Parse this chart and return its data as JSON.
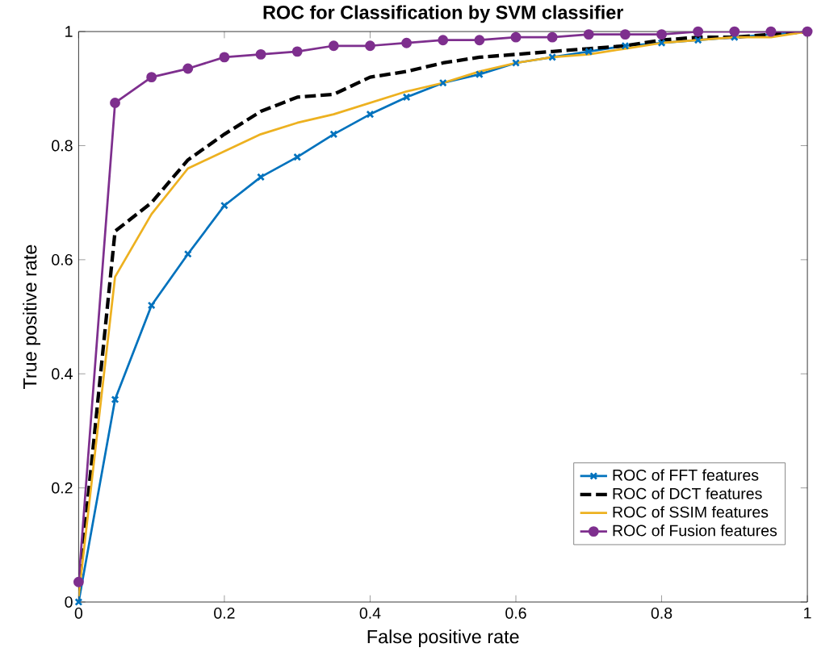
{
  "chart_data": {
    "type": "line",
    "title": "ROC for Classification by SVM classifier",
    "xlabel": "False positive rate",
    "ylabel": "True positive rate",
    "x": [
      0,
      0.05,
      0.1,
      0.15,
      0.2,
      0.25,
      0.3,
      0.35,
      0.4,
      0.45,
      0.5,
      0.55,
      0.6,
      0.65,
      0.7,
      0.75,
      0.8,
      0.85,
      0.9,
      0.95,
      1
    ],
    "series": [
      {
        "name": "ROC of FFT features",
        "color": "#0072bd",
        "marker": "cross",
        "line_style": "solid",
        "values": [
          0,
          0.355,
          0.52,
          0.61,
          0.695,
          0.745,
          0.78,
          0.82,
          0.855,
          0.885,
          0.91,
          0.925,
          0.945,
          0.955,
          0.965,
          0.975,
          0.98,
          0.985,
          0.99,
          null,
          1
        ]
      },
      {
        "name": "ROC of DCT features",
        "color": "#000000",
        "marker": "none",
        "line_style": "dashed",
        "values": [
          0.02,
          0.65,
          0.7,
          0.775,
          0.82,
          0.86,
          0.885,
          0.89,
          0.92,
          0.93,
          0.945,
          0.955,
          0.96,
          0.965,
          0.97,
          0.975,
          0.985,
          0.99,
          0.99,
          0.995,
          1
        ]
      },
      {
        "name": "ROC of SSIM features",
        "color": "#edb120",
        "marker": "none",
        "line_style": "solid",
        "values": [
          0.01,
          0.57,
          0.68,
          0.76,
          0.79,
          0.82,
          0.84,
          0.855,
          0.875,
          0.895,
          0.91,
          0.93,
          0.945,
          0.955,
          0.96,
          0.97,
          0.98,
          0.985,
          0.99,
          0.99,
          1
        ]
      },
      {
        "name": "ROC of Fusion features",
        "color": "#7e2f8e",
        "marker": "circle",
        "line_style": "solid",
        "values": [
          0.035,
          0.875,
          0.92,
          0.935,
          0.955,
          0.96,
          0.965,
          0.975,
          0.975,
          0.98,
          0.985,
          0.985,
          0.99,
          0.99,
          0.995,
          0.995,
          0.995,
          1,
          1,
          1,
          1
        ]
      }
    ],
    "xlim": [
      0,
      1
    ],
    "ylim": [
      0,
      1
    ],
    "xticks": [
      0,
      0.2,
      0.4,
      0.6,
      0.8,
      1
    ],
    "yticks": [
      0,
      0.2,
      0.4,
      0.6,
      0.8,
      1
    ],
    "grid": false,
    "legend": "bottom right"
  }
}
